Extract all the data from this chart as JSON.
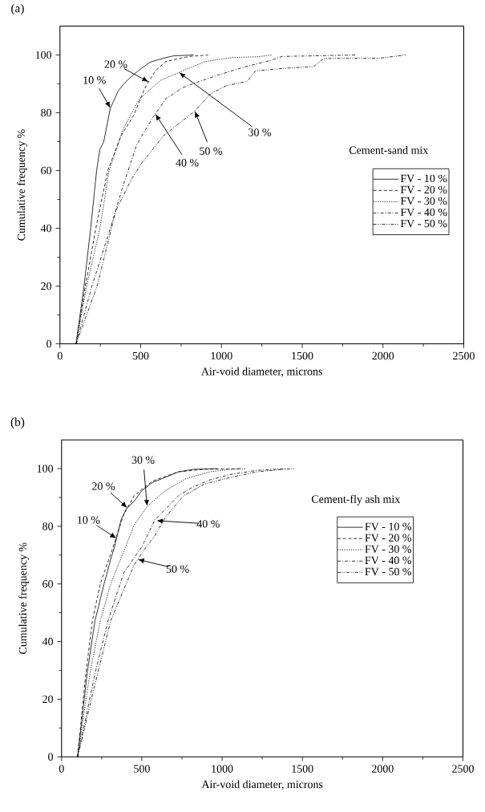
{
  "chart_data": [
    {
      "type": "line",
      "title": "(a)",
      "xlabel": "Air-void diameter, microns",
      "ylabel": "Cumulative frequency %",
      "legend_title": "Cement-sand mix",
      "legend": "right",
      "xlim": [
        0,
        2500
      ],
      "ylim": [
        0,
        110
      ],
      "xticks": [
        0,
        500,
        1000,
        1500,
        2000,
        2500
      ],
      "yticks": [
        0,
        20,
        40,
        60,
        80,
        100
      ],
      "series": [
        {
          "name": "FV - 10 %",
          "color": "#000000",
          "line_style": "solid",
          "x": [
            100,
            149,
            190,
            227,
            247,
            271,
            312,
            361,
            394,
            443,
            484,
            557,
            655,
            704,
            827
          ],
          "values": [
            0,
            20,
            40,
            60,
            67.3,
            70,
            81.6,
            87.6,
            89.9,
            92.6,
            94.5,
            97.5,
            99.1,
            99.7,
            100
          ]
        },
        {
          "name": "FV - 20 %",
          "color": "#000000",
          "line_style": "dashed",
          "x": [
            100,
            157,
            222,
            296,
            377,
            459,
            525,
            590,
            655,
            721,
            802,
            917
          ],
          "values": [
            0,
            20,
            40,
            60,
            71.9,
            79.3,
            88.5,
            94.5,
            97.7,
            98.6,
            99.5,
            100
          ]
        },
        {
          "name": "FV - 30 %",
          "color": "#000000",
          "line_style": "dotted",
          "x": [
            100,
            165,
            247,
            304,
            394,
            492,
            623,
            737,
            900,
            1064,
            1227,
            1310
          ],
          "values": [
            0,
            20,
            40,
            60,
            74.7,
            84.8,
            91.2,
            94,
            97.7,
            99.1,
            99.4,
            100
          ]
        },
        {
          "name": "FV - 40 %",
          "color": "#000000",
          "line_style": "dashdot",
          "x": [
            100,
            198,
            312,
            394,
            476,
            574,
            655,
            753,
            835,
            982,
            1145,
            1309,
            1375,
            1830
          ],
          "values": [
            0,
            20,
            40,
            55.3,
            69.1,
            78.3,
            84.8,
            88.5,
            90.3,
            93.1,
            95.9,
            98.2,
            99.5,
            100
          ]
        },
        {
          "name": "FV - 50 %",
          "color": "#000000",
          "line_style": "dashdotdot",
          "x": [
            100,
            230,
            345,
            443,
            508,
            574,
            639,
            721,
            835,
            933,
            1031,
            1160,
            1210,
            1390,
            1570,
            1635,
            1980,
            2140
          ],
          "values": [
            0,
            20,
            46,
            57.1,
            62.7,
            67.3,
            71.9,
            75.6,
            80.6,
            86.6,
            89.4,
            90.9,
            94.5,
            95.4,
            96,
            98.8,
            98.9,
            100
          ]
        }
      ],
      "annotations": [
        {
          "text": "10 %",
          "x": 312,
          "y": 81.6
        },
        {
          "text": "20 %",
          "x": 549,
          "y": 90.7
        },
        {
          "text": "30 %",
          "x": 737,
          "y": 94
        },
        {
          "text": "40 %",
          "x": 590,
          "y": 79.6
        },
        {
          "text": "50 %",
          "x": 835,
          "y": 80.6
        }
      ]
    },
    {
      "type": "line",
      "title": "(b)",
      "xlabel": "Air-void diameter, microns",
      "ylabel": "Cumulative frequency %",
      "legend_title": "Cement-fly ash mix",
      "legend": "right",
      "xlim": [
        0,
        2500
      ],
      "ylim": [
        0,
        110
      ],
      "xticks": [
        0,
        500,
        1000,
        1500,
        2000,
        2500
      ],
      "yticks": [
        0,
        20,
        40,
        60,
        80,
        100
      ],
      "series": [
        {
          "name": "FV - 10 %",
          "color": "#000000",
          "line_style": "solid",
          "x": [
            100,
            159,
            208,
            265,
            306,
            330,
            371,
            403,
            452,
            501,
            566,
            647,
            728,
            826,
            972
          ],
          "values": [
            0,
            28.8,
            47.2,
            60.1,
            68.5,
            73,
            82.3,
            86,
            88.7,
            92.4,
            95.2,
            97,
            98.9,
            99.8,
            100
          ]
        },
        {
          "name": "FV - 20 %",
          "color": "#000000",
          "line_style": "dashed",
          "x": [
            100,
            151,
            192,
            241,
            322,
            387,
            452,
            566,
            728,
            891,
            1118
          ],
          "values": [
            0,
            28.8,
            47.2,
            60,
            73,
            84.1,
            90.6,
            95.7,
            98.9,
            99.8,
            100
          ]
        },
        {
          "name": "FV - 30 %",
          "color": "#000000",
          "line_style": "dotted",
          "x": [
            100,
            176,
            241,
            306,
            387,
            452,
            533,
            647,
            777,
            924,
            1054,
            1150
          ],
          "values": [
            0,
            28.8,
            47.2,
            60,
            71.2,
            80.4,
            86.9,
            92.4,
            96.6,
            98.9,
            99.8,
            100
          ]
        },
        {
          "name": "FV - 40 %",
          "color": "#000000",
          "line_style": "dashdot",
          "x": [
            100,
            208,
            289,
            387,
            501,
            582,
            647,
            728,
            810,
            924,
            1054,
            1216,
            1400
          ],
          "values": [
            0,
            28.8,
            47.2,
            63.8,
            73,
            82.3,
            86,
            90.6,
            93.4,
            96.1,
            98,
            99.4,
            100
          ]
        },
        {
          "name": "FV - 50 %",
          "color": "#000000",
          "line_style": "dashdotdot",
          "x": [
            100,
            224,
            306,
            403,
            452,
            517,
            582,
            647,
            761,
            891,
            1054,
            1216,
            1379,
            1450
          ],
          "values": [
            0,
            28.8,
            47.2,
            60.1,
            66.6,
            72.1,
            76.8,
            83.2,
            90.6,
            94.7,
            97,
            98.9,
            99.8,
            100
          ]
        }
      ],
      "annotations": [
        {
          "text": "10 %",
          "x": 342,
          "y": 75.8
        },
        {
          "text": "20 %",
          "x": 410,
          "y": 86.4
        },
        {
          "text": "30 %",
          "x": 533,
          "y": 86.9
        },
        "40 %",
        {
          "text": "50 %",
          "x": 474,
          "y": 68.5
        }
      ]
    }
  ]
}
